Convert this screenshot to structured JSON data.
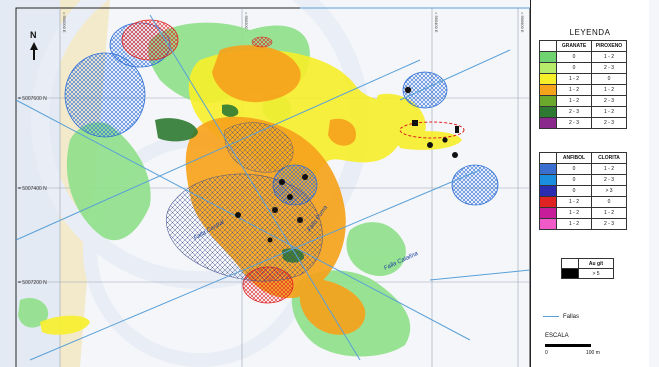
{
  "map": {
    "north_label": "N",
    "northing_labels": [
      "= 5007600 N",
      "= 5007400 N",
      "= 5007200 N"
    ],
    "easting_labels": [
      "= 590000 E",
      "= 590200 E",
      "= 590400 E",
      "= 590600 E"
    ],
    "fault_labels": [
      "Falla Puma",
      "Falla Central",
      "Falla Catalina"
    ]
  },
  "legend": {
    "title": "LEYENDA",
    "table1": {
      "headers": [
        "GRANATE",
        "PIROXENO"
      ],
      "rows": [
        {
          "color": "#6fd46f",
          "a": "0",
          "b": "1 - 2"
        },
        {
          "color": "#b6ec6a",
          "a": "0",
          "b": "2 - 3"
        },
        {
          "color": "#f7ef2a",
          "a": "1 - 2",
          "b": "0"
        },
        {
          "color": "#f6a31c",
          "a": "1 - 2",
          "b": "1 - 2"
        },
        {
          "color": "#6aa92c",
          "a": "1 - 2",
          "b": "2 - 3"
        },
        {
          "color": "#2f7a32",
          "a": "2 - 3",
          "b": "1 - 2"
        },
        {
          "color": "#8a2a8c",
          "a": "2 - 3",
          "b": "2 - 3"
        }
      ]
    },
    "table2": {
      "headers": [
        "ANFIBOL",
        "CLORITA"
      ],
      "rows": [
        {
          "color": "#3a6fd0",
          "a": "0",
          "b": "1 - 2"
        },
        {
          "color": "#1c8ee0",
          "a": "0",
          "b": "2 - 3"
        },
        {
          "color": "#2c2cb0",
          "a": "0",
          "b": "> 3"
        },
        {
          "color": "#e02222",
          "a": "1 - 2",
          "b": "0"
        },
        {
          "color": "#c81d9a",
          "a": "1 - 2",
          "b": "1 - 2"
        },
        {
          "color": "#f05ac8",
          "a": "1 - 2",
          "b": "2 - 3"
        }
      ]
    },
    "au": {
      "header": "Au g/t",
      "value": "> 5",
      "color": "#000000"
    },
    "faults_label": "Fallas",
    "scale_title": "ESCALA",
    "scale_start": "0",
    "scale_end": "100 m"
  }
}
